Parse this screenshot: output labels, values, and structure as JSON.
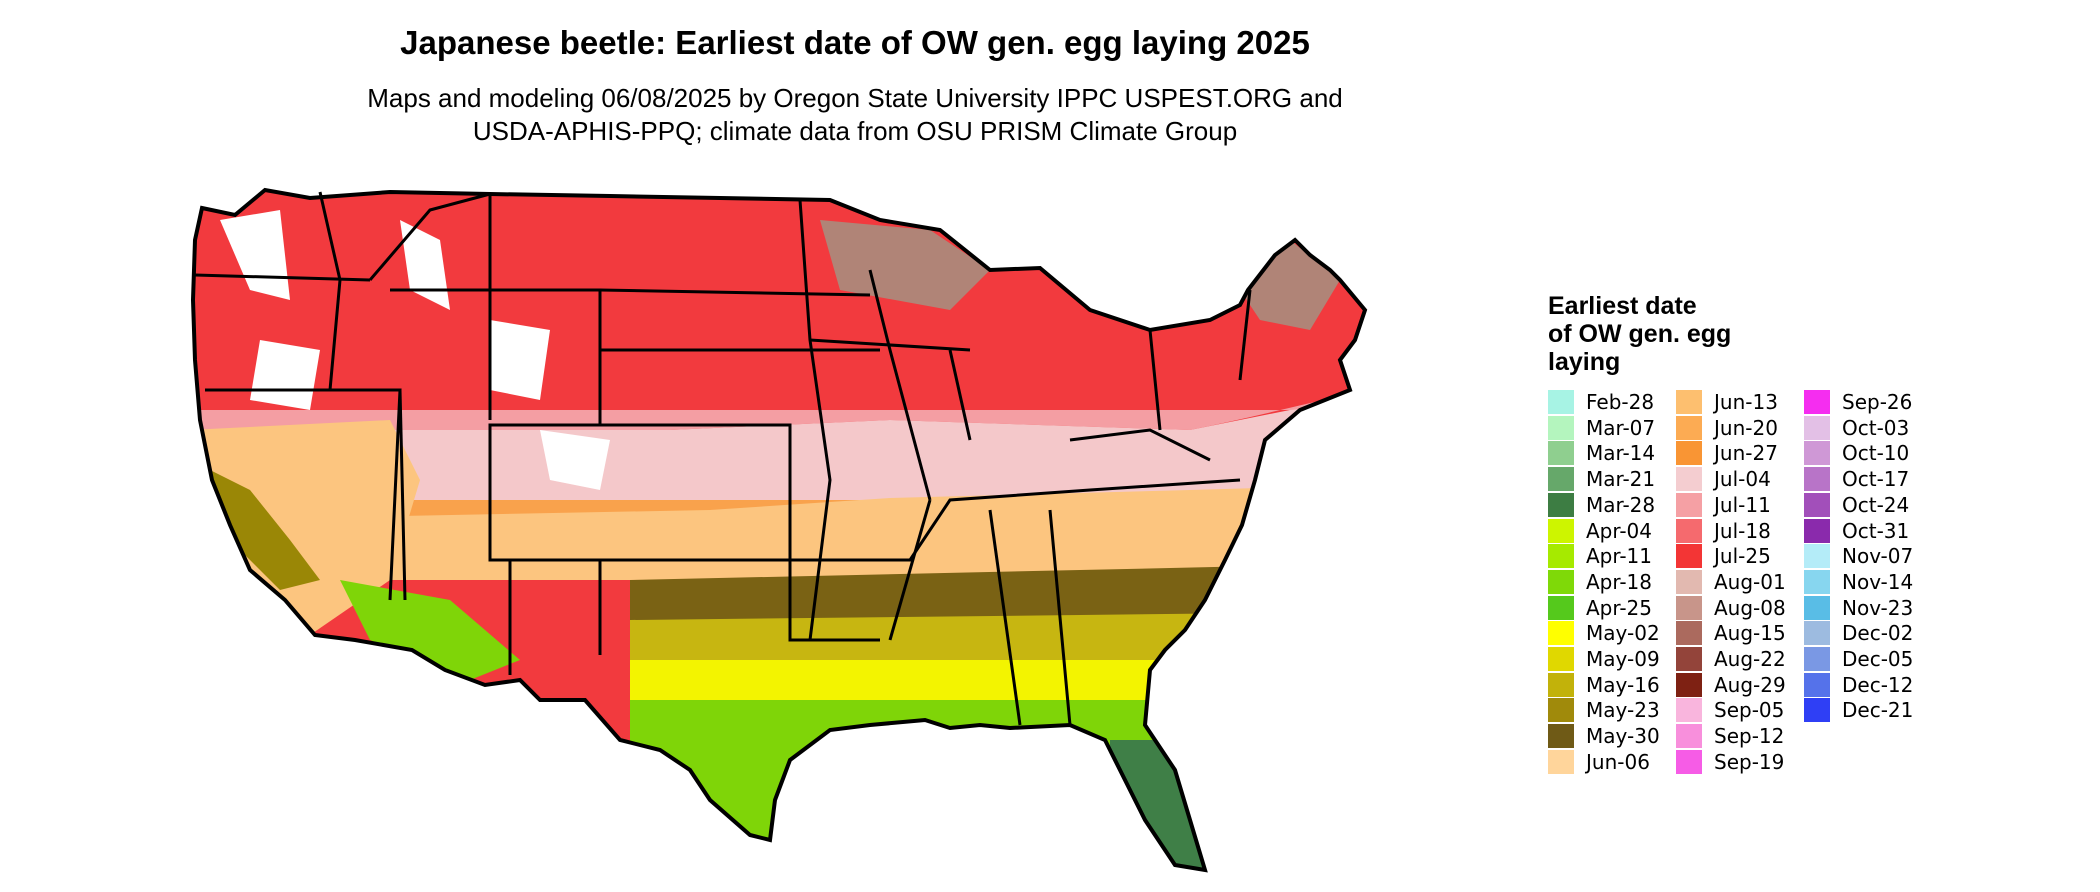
{
  "map": {
    "title": "Japanese beetle: Earliest date of OW gen. egg laying 2025",
    "subtitle_lines": [
      "Maps and modeling 06/08/2025 by Oregon State University IPPC USPEST.ORG and",
      "USDA-APHIS-PPQ; climate data from OSU PRISM Climate Group"
    ],
    "colors": {
      "north_high": "#ffffff",
      "north_red": "#f23a3e",
      "north_pink": "#f49ea3",
      "mid_pink": "#f4c8ca",
      "mid_orange": "#f9a24c",
      "mid_tan": "#fcc57f",
      "south_olive": "#7a6214",
      "south_gold": "#c7b611",
      "south_yellow": "#f3f400",
      "gulf_green": "#7fd508",
      "florida_dark": "#3f7f47",
      "great_lakes_brown": "#b08477",
      "ca_valley": "#9a8706",
      "border": "#000000"
    }
  },
  "legend": {
    "title_lines": [
      "Earliest date",
      "of OW gen. egg",
      "laying"
    ],
    "columns": [
      [
        {
          "label": "Feb-28",
          "color": "#a7f3e4"
        },
        {
          "label": "Mar-07",
          "color": "#b4f5be"
        },
        {
          "label": "Mar-14",
          "color": "#8fcf8f"
        },
        {
          "label": "Mar-21",
          "color": "#66a86a"
        },
        {
          "label": "Mar-28",
          "color": "#3d7d43"
        },
        {
          "label": "Apr-04",
          "color": "#cdf500"
        },
        {
          "label": "Apr-11",
          "color": "#a6ea00"
        },
        {
          "label": "Apr-18",
          "color": "#7fd908"
        },
        {
          "label": "Apr-25",
          "color": "#55c91c"
        },
        {
          "label": "May-02",
          "color": "#ffff00"
        },
        {
          "label": "May-09",
          "color": "#e0d800"
        },
        {
          "label": "May-16",
          "color": "#c2b20a"
        },
        {
          "label": "May-23",
          "color": "#a08a0b"
        },
        {
          "label": "May-30",
          "color": "#6f5a16"
        },
        {
          "label": "Jun-06",
          "color": "#ffd59b"
        }
      ],
      [
        {
          "label": "Jun-13",
          "color": "#fdbf6f"
        },
        {
          "label": "Jun-20",
          "color": "#fcab53"
        },
        {
          "label": "Jun-27",
          "color": "#f99534"
        },
        {
          "label": "Jul-04",
          "color": "#f4cdd0"
        },
        {
          "label": "Jul-11",
          "color": "#f5a0a4"
        },
        {
          "label": "Jul-18",
          "color": "#f56a6e"
        },
        {
          "label": "Jul-25",
          "color": "#f33535"
        },
        {
          "label": "Aug-01",
          "color": "#e2b9b0"
        },
        {
          "label": "Aug-08",
          "color": "#c8958a"
        },
        {
          "label": "Aug-15",
          "color": "#ab6a5e"
        },
        {
          "label": "Aug-22",
          "color": "#93443a"
        },
        {
          "label": "Aug-29",
          "color": "#7e2113"
        },
        {
          "label": "Sep-05",
          "color": "#f9b5dd"
        },
        {
          "label": "Sep-12",
          "color": "#f88fdc"
        },
        {
          "label": "Sep-19",
          "color": "#f65ce6"
        }
      ],
      [
        {
          "label": "Sep-26",
          "color": "#f52df0"
        },
        {
          "label": "Oct-03",
          "color": "#e3c0e6"
        },
        {
          "label": "Oct-10",
          "color": "#cf98d6"
        },
        {
          "label": "Oct-17",
          "color": "#b874c8"
        },
        {
          "label": "Oct-24",
          "color": "#a24fba"
        },
        {
          "label": "Oct-31",
          "color": "#8a2aac"
        },
        {
          "label": "Nov-07",
          "color": "#b4ecf8"
        },
        {
          "label": "Nov-14",
          "color": "#87d6ef"
        },
        {
          "label": "Nov-23",
          "color": "#59bde6"
        },
        {
          "label": "Dec-02",
          "color": "#9dbbe0"
        },
        {
          "label": "Dec-05",
          "color": "#7a98e4"
        },
        {
          "label": "Dec-12",
          "color": "#5572ea"
        },
        {
          "label": "Dec-21",
          "color": "#2f3ff5"
        }
      ]
    ]
  }
}
